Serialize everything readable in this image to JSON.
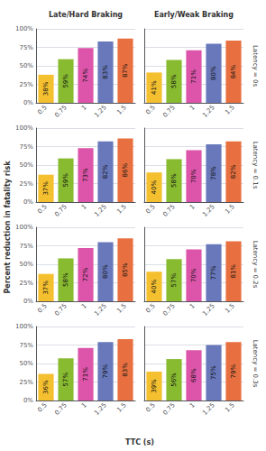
{
  "chart_data": [
    {
      "type": "bar",
      "title": "Late/Hard Braking",
      "subtitle": "Latency = 0s",
      "xlabel": "TTC (s)",
      "ylabel": "Percent reduction in fatality risk",
      "categories": [
        "0.5",
        "0.75",
        "1",
        "1.25",
        "1.5"
      ],
      "values": [
        38,
        59,
        74,
        83,
        87
      ],
      "value_labels": [
        "38%",
        "59%",
        "74%",
        "83%",
        "87%"
      ],
      "colors": [
        "#F5C030",
        "#88BB30",
        "#DD55AA",
        "#6878BB",
        "#E87040"
      ],
      "data_labels": true,
      "ylim": [
        0,
        100
      ],
      "yticks": [
        {
          "value": 0,
          "label": "0%"
        },
        {
          "value": 25,
          "label": "25%"
        },
        {
          "value": 50,
          "label": "50%"
        },
        {
          "value": 75,
          "label": "75%"
        },
        {
          "value": 100,
          "label": "100%"
        }
      ],
      "grid": true
    },
    {
      "type": "bar",
      "title": "Early/Weak Braking",
      "subtitle": "Latency = 0s",
      "xlabel": "TTC (s)",
      "ylabel": "Percent reduction in fatality risk",
      "categories": [
        "0.5",
        "0.75",
        "1",
        "1.25",
        "1.5"
      ],
      "values": [
        41,
        58,
        71,
        80,
        84
      ],
      "value_labels": [
        "41%",
        "58%",
        "71%",
        "80%",
        "84%"
      ],
      "colors": [
        "#F5C030",
        "#88BB30",
        "#DD55AA",
        "#6878BB",
        "#E87040"
      ],
      "data_labels": true,
      "ylim": [
        0,
        100
      ],
      "yticks": [
        {
          "value": 0,
          "label": "0%"
        },
        {
          "value": 25,
          "label": "25%"
        },
        {
          "value": 50,
          "label": "50%"
        },
        {
          "value": 75,
          "label": "75%"
        },
        {
          "value": 100,
          "label": "100%"
        }
      ],
      "grid": true,
      "tick_labels": "x"
    },
    {
      "type": "bar",
      "title": "Late/Hard Braking",
      "subtitle": "Latency = 0.1s",
      "xlabel": "TTC (s)",
      "ylabel": "Percent reduction in fatality risk",
      "categories": [
        "0.5",
        "0.75",
        "1",
        "1.25",
        "1.5"
      ],
      "values": [
        37,
        59,
        73,
        82,
        86
      ],
      "value_labels": [
        "37%",
        "59%",
        "73%",
        "82%",
        "86%"
      ],
      "colors": [
        "#F5C030",
        "#88BB30",
        "#DD55AA",
        "#6878BB",
        "#E87040"
      ],
      "data_labels": true,
      "ylim": [
        0,
        100
      ],
      "yticks": [
        {
          "value": 0,
          "label": "0%"
        },
        {
          "value": 25,
          "label": "25%"
        },
        {
          "value": 50,
          "label": "50%"
        },
        {
          "value": 75,
          "label": "75%"
        },
        {
          "value": 100,
          "label": "100%"
        }
      ],
      "grid": true
    },
    {
      "type": "bar",
      "title": "Early/Weak Braking",
      "subtitle": "Latency = 0.1s",
      "xlabel": "TTC (s)",
      "ylabel": "Percent reduction in fatality risk",
      "categories": [
        "0.5",
        "0.75",
        "1",
        "1.25",
        "1.5"
      ],
      "values": [
        40,
        58,
        70,
        78,
        82
      ],
      "value_labels": [
        "40%",
        "58%",
        "70%",
        "78%",
        "82%"
      ],
      "colors": [
        "#F5C030",
        "#88BB30",
        "#DD55AA",
        "#6878BB",
        "#E87040"
      ],
      "data_labels": true,
      "ylim": [
        0,
        100
      ],
      "yticks": [
        {
          "value": 0,
          "label": "0%"
        },
        {
          "value": 25,
          "label": "25%"
        },
        {
          "value": 50,
          "label": "50%"
        },
        {
          "value": 75,
          "label": "75%"
        },
        {
          "value": 100,
          "label": "100%"
        }
      ],
      "grid": true,
      "tick_labels": "x"
    },
    {
      "type": "bar",
      "title": "Late/Hard Braking",
      "subtitle": "Latency = 0.2s",
      "xlabel": "TTC (s)",
      "ylabel": "Percent reduction in fatality risk",
      "categories": [
        "0.5",
        "0.75",
        "1",
        "1.25",
        "1.5"
      ],
      "values": [
        37,
        58,
        72,
        80,
        85
      ],
      "value_labels": [
        "37%",
        "58%",
        "72%",
        "80%",
        "85%"
      ],
      "colors": [
        "#F5C030",
        "#88BB30",
        "#DD55AA",
        "#6878BB",
        "#E87040"
      ],
      "data_labels": true,
      "ylim": [
        0,
        100
      ],
      "yticks": [
        {
          "value": 0,
          "label": "0%"
        },
        {
          "value": 25,
          "label": "25%"
        },
        {
          "value": 50,
          "label": "50%"
        },
        {
          "value": 75,
          "label": "75%"
        },
        {
          "value": 100,
          "label": "100%"
        }
      ],
      "grid": true
    },
    {
      "type": "bar",
      "title": "Early/Weak Braking",
      "subtitle": "Latency = 0.2s",
      "xlabel": "TTC (s)",
      "ylabel": "Percent reduction in fatality risk",
      "categories": [
        "0.5",
        "0.75",
        "1",
        "1.25",
        "1.5"
      ],
      "values": [
        40,
        57,
        70,
        77,
        81
      ],
      "value_labels": [
        "40%",
        "57%",
        "70%",
        "77%",
        "81%"
      ],
      "colors": [
        "#F5C030",
        "#88BB30",
        "#DD55AA",
        "#6878BB",
        "#E87040"
      ],
      "data_labels": true,
      "ylim": [
        0,
        100
      ],
      "yticks": [
        {
          "value": 0,
          "label": "0%"
        },
        {
          "value": 25,
          "label": "25%"
        },
        {
          "value": 50,
          "label": "50%"
        },
        {
          "value": 75,
          "label": "75%"
        },
        {
          "value": 100,
          "label": "100%"
        }
      ],
      "grid": true,
      "tick_labels": "x"
    },
    {
      "type": "bar",
      "title": "Late/Hard Braking",
      "subtitle": "Latency = 0.3s",
      "xlabel": "TTC (s)",
      "ylabel": "Percent reduction in fatality risk",
      "categories": [
        "0.5",
        "0.75",
        "1",
        "1.25",
        "1.5"
      ],
      "values": [
        36,
        57,
        71,
        79,
        83
      ],
      "value_labels": [
        "36%",
        "57%",
        "71%",
        "79%",
        "83%"
      ],
      "colors": [
        "#F5C030",
        "#88BB30",
        "#DD55AA",
        "#6878BB",
        "#E87040"
      ],
      "data_labels": true,
      "ylim": [
        0,
        100
      ],
      "yticks": [
        {
          "value": 0,
          "label": "0%"
        },
        {
          "value": 25,
          "label": "25%"
        },
        {
          "value": 50,
          "label": "50%"
        },
        {
          "value": 75,
          "label": "75%"
        },
        {
          "value": 100,
          "label": "100%"
        }
      ],
      "grid": true
    },
    {
      "type": "bar",
      "title": "Early/Weak Braking",
      "subtitle": "Latency = 0.3s",
      "xlabel": "TTC (s)",
      "ylabel": "Percent reduction in fatality risk",
      "categories": [
        "0.5",
        "0.75",
        "1",
        "1.25",
        "1.5"
      ],
      "values": [
        39,
        56,
        68,
        75,
        79
      ],
      "value_labels": [
        "39%",
        "56%",
        "68%",
        "75%",
        "79%"
      ],
      "colors": [
        "#F5C030",
        "#88BB30",
        "#DD55AA",
        "#6878BB",
        "#E87040"
      ],
      "data_labels": true,
      "ylim": [
        0,
        100
      ],
      "yticks": [
        {
          "value": 0,
          "label": "0%"
        },
        {
          "value": 25,
          "label": "25%"
        },
        {
          "value": 50,
          "label": "50%"
        },
        {
          "value": 75,
          "label": "75%"
        },
        {
          "value": 100,
          "label": "100%"
        }
      ],
      "grid": true,
      "tick_labels": "x"
    }
  ]
}
